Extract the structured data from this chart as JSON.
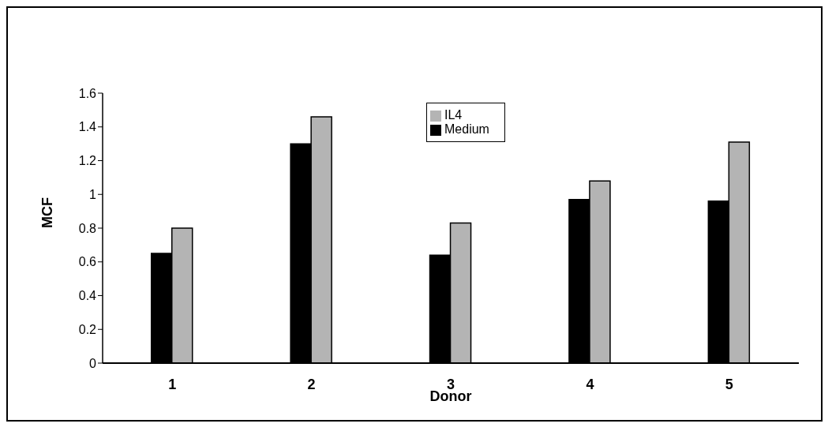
{
  "chart_data": {
    "type": "bar",
    "xlabel": "Donor",
    "ylabel": "MCF",
    "categories": [
      "1",
      "2",
      "3",
      "4",
      "5"
    ],
    "series": [
      {
        "name": "Medium",
        "color": "#000000",
        "values": [
          0.65,
          1.3,
          0.64,
          0.97,
          0.96
        ]
      },
      {
        "name": "IL4",
        "color": "#b4b4b4",
        "values": [
          0.8,
          1.46,
          0.83,
          1.08,
          1.31
        ]
      }
    ],
    "ylim": [
      0,
      1.6
    ],
    "yticks": [
      0,
      0.2,
      0.4,
      0.6,
      0.8,
      1,
      1.2,
      1.4,
      1.6
    ],
    "grid": false,
    "legend": "top"
  }
}
